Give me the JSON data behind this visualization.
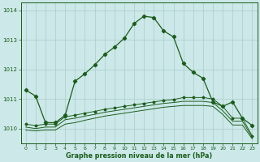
{
  "x": [
    0,
    1,
    2,
    3,
    4,
    5,
    6,
    7,
    8,
    9,
    10,
    11,
    12,
    13,
    14,
    15,
    16,
    17,
    18,
    19,
    20,
    21,
    22,
    23
  ],
  "line1": [
    1011.3,
    1011.1,
    1010.2,
    1010.2,
    1010.45,
    1011.6,
    1011.85,
    1012.15,
    1012.5,
    1012.75,
    1013.05,
    1013.55,
    1013.8,
    1013.75,
    1013.3,
    1013.1,
    1012.2,
    1011.9,
    1011.7,
    1010.9,
    1010.75,
    1010.9,
    1010.35,
    1010.1
  ],
  "line2": [
    1010.15,
    1010.1,
    1010.15,
    1010.15,
    1010.4,
    1010.45,
    1010.52,
    1010.58,
    1010.65,
    1010.7,
    1010.75,
    1010.8,
    1010.85,
    1010.9,
    1010.95,
    1010.98,
    1011.05,
    1011.05,
    1011.05,
    1011.0,
    1010.75,
    1010.35,
    1010.35,
    1009.75
  ],
  "line3": [
    1010.05,
    1010.0,
    1010.05,
    1010.05,
    1010.3,
    1010.35,
    1010.42,
    1010.48,
    1010.55,
    1010.6,
    1010.65,
    1010.7,
    1010.75,
    1010.8,
    1010.85,
    1010.88,
    1010.92,
    1010.92,
    1010.92,
    1010.88,
    1010.6,
    1010.25,
    1010.25,
    1009.7
  ],
  "line4": [
    1009.95,
    1009.92,
    1009.95,
    1009.95,
    1010.15,
    1010.2,
    1010.28,
    1010.35,
    1010.42,
    1010.47,
    1010.52,
    1010.57,
    1010.62,
    1010.67,
    1010.72,
    1010.75,
    1010.78,
    1010.78,
    1010.78,
    1010.75,
    1010.48,
    1010.12,
    1010.12,
    1009.65
  ],
  "bg_color": "#cce8e8",
  "grid_color": "#aacccc",
  "line_color": "#1a5c1a",
  "xlabel": "Graphe pression niveau de la mer (hPa)",
  "ylim_min": 1009.5,
  "ylim_max": 1014.25,
  "xlim_min": -0.5,
  "xlim_max": 23.5,
  "yticks": [
    1010,
    1011,
    1012,
    1013,
    1014
  ],
  "xticks": [
    0,
    1,
    2,
    3,
    4,
    5,
    6,
    7,
    8,
    9,
    10,
    11,
    12,
    13,
    14,
    15,
    16,
    17,
    18,
    19,
    20,
    21,
    22,
    23
  ],
  "marker_size": 2.2,
  "linewidth": 0.9
}
